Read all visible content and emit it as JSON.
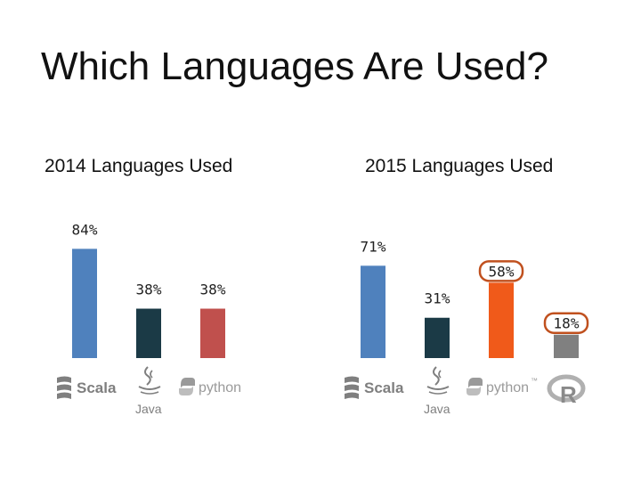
{
  "slide": {
    "title": "Which Languages Are Used?"
  },
  "colors": {
    "scala": "#4f81bd",
    "java": "#1b3a46",
    "python_2014": "#c0504d",
    "python_2015": "#f05a1a",
    "r": "#808080",
    "highlight_ring": "#c0501e"
  },
  "chart_data": [
    {
      "type": "bar",
      "title": "2014 Languages Used",
      "categories": [
        "Scala",
        "Java",
        "python"
      ],
      "values": [
        84,
        38,
        38
      ],
      "value_labels": [
        "84%",
        "38%",
        "38%"
      ],
      "ylim": [
        0,
        100
      ],
      "grid": false
    },
    {
      "type": "bar",
      "title": "2015 Languages Used",
      "categories": [
        "Scala",
        "Java",
        "python",
        "R"
      ],
      "values": [
        71,
        31,
        58,
        18
      ],
      "value_labels": [
        "71%",
        "31%",
        "58%",
        "18%"
      ],
      "highlighted": [
        "python",
        "R"
      ],
      "ylim": [
        0,
        100
      ],
      "grid": false
    }
  ],
  "logos": {
    "scala": "Scala",
    "java": "Java",
    "python": "python",
    "python_tm": "™",
    "r": "R"
  }
}
